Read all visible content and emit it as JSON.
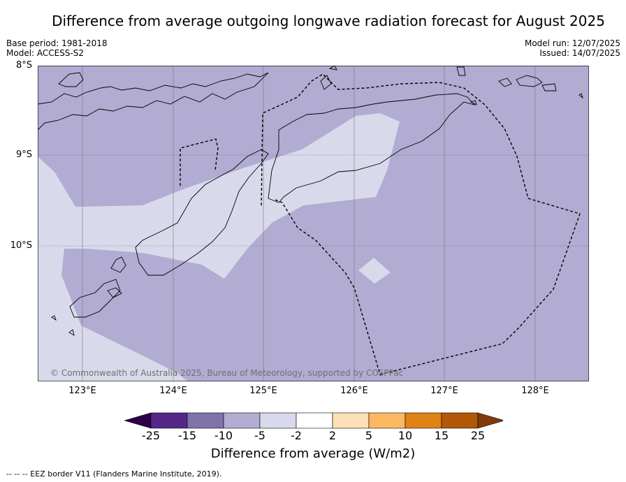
{
  "title": "Difference from average outgoing longwave radiation forecast for August 2025",
  "base_period": "Base period: 1981-2018",
  "model": "Model: ACCESS-S2",
  "model_run": "Model run: 12/07/2025",
  "issued": "Issued: 14/07/2025",
  "copyright": "© Commonwealth of Australia 2025, Bureau of Meteorology, supported by COSPPac",
  "lat_labels": [
    "8°S",
    "9°S",
    "10°S"
  ],
  "lon_labels": [
    "123°E",
    "124°E",
    "125°E",
    "126°E",
    "127°E",
    "128°E"
  ],
  "colorbar": {
    "title": "Difference from average (W/m2)",
    "ticks": [
      "-25",
      "-15",
      "-10",
      "-5",
      "-2",
      "2",
      "5",
      "10",
      "15",
      "25"
    ],
    "colors": [
      "#2d004b",
      "#542788",
      "#8073ac",
      "#b2abd2",
      "#d8daeb",
      "#ffffff",
      "#fee0b6",
      "#fdb863",
      "#e08214",
      "#b35806",
      "#7f3b08"
    ]
  },
  "footnote": "--  --  -- EEZ border V11 (Flanders Marine Institute, 2019).",
  "map_colors": {
    "base_fill": "#b2abd2",
    "light_fill": "#d8daeb"
  }
}
